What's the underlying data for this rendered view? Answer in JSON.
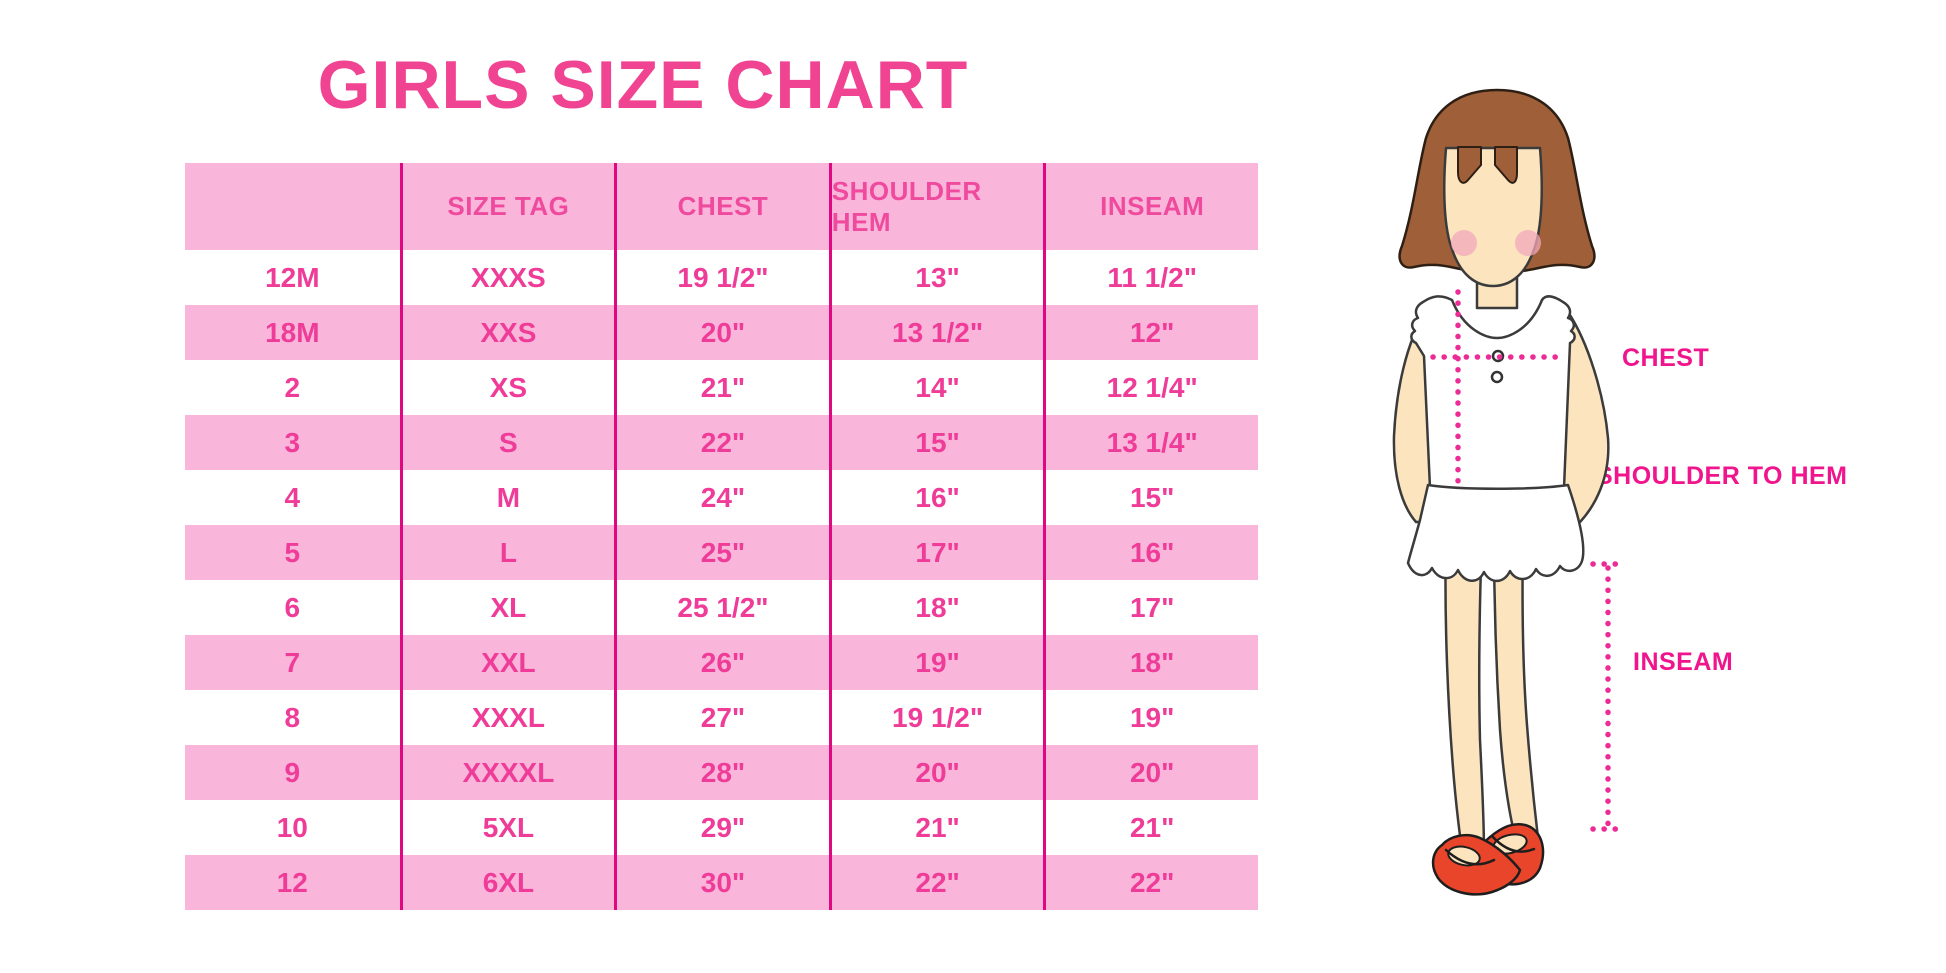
{
  "page": {
    "title": "GIRLS SIZE CHART",
    "background": "#ffffff"
  },
  "chart_data": {
    "type": "table",
    "title": "GIRLS SIZE CHART",
    "columns": [
      "",
      "SIZE TAG",
      "CHEST",
      "SHOULDER HEM",
      "INSEAM"
    ],
    "rows": [
      [
        "12M",
        "XXXS",
        "19 1/2\"",
        "13\"",
        "11 1/2\""
      ],
      [
        "18M",
        "XXS",
        "20\"",
        "13 1/2\"",
        "12\""
      ],
      [
        "2",
        "XS",
        "21\"",
        "14\"",
        "12 1/4\""
      ],
      [
        "3",
        "S",
        "22\"",
        "15\"",
        "13 1/4\""
      ],
      [
        "4",
        "M",
        "24\"",
        "16\"",
        "15\""
      ],
      [
        "5",
        "L",
        "25\"",
        "17\"",
        "16\""
      ],
      [
        "6",
        "XL",
        "25 1/2\"",
        "18\"",
        "17\""
      ],
      [
        "7",
        "XXL",
        "26\"",
        "19\"",
        "18\""
      ],
      [
        "8",
        "XXXL",
        "27\"",
        "19 1/2\"",
        "19\""
      ],
      [
        "9",
        "XXXXL",
        "28\"",
        "20\"",
        "20\""
      ],
      [
        "10",
        "5XL",
        "29\"",
        "21\"",
        "21\""
      ],
      [
        "12",
        "6XL",
        "30\"",
        "22\"",
        "22\""
      ]
    ],
    "units": "inches",
    "striping": "header pink, data rows alternate white/pink starting white"
  },
  "figure": {
    "description": "cartoon girl with brown bob hair, white ruffled top and skirt, red shoes, dotted measurement guides",
    "labels": {
      "chest": "CHEST",
      "shoulder_to_hem": "SHOULDER TO HEM",
      "inseam": "INSEAM"
    }
  },
  "colors": {
    "title_pink": "#F04391",
    "row_pink": "#FAB6DA",
    "divider_magenta": "#DF0881",
    "table_text": "#EE3C98",
    "label_magenta": "#F0148D",
    "dotted_line": "#ED2B96",
    "hair_brown": "#9F6039",
    "skin": "#FBE4BE",
    "shoe_red": "#E8452B",
    "blush": "#F2A8BB"
  }
}
